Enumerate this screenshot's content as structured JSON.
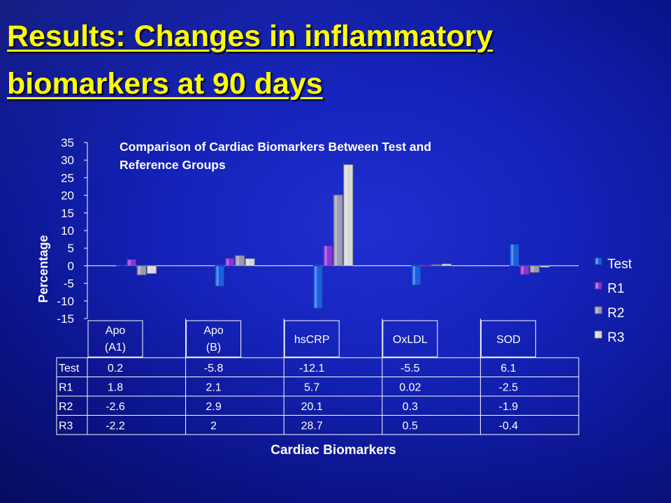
{
  "slide": {
    "title_line1": "Results: Changes in inflammatory",
    "title_line2": "biomarkers at 90 days"
  },
  "chart_data": {
    "type": "bar",
    "title": "Comparison of Cardiac Biomarkers Between Test and Reference Groups",
    "title_lines": [
      "Comparison of Cardiac Biomarkers Between Test and",
      "Reference Groups"
    ],
    "xlabel": "Cardiac Biomarkers",
    "ylabel": "Percentage",
    "ylim": [
      -15,
      35
    ],
    "yticks": [
      35,
      30,
      25,
      20,
      15,
      10,
      5,
      0,
      -5,
      -10,
      -15
    ],
    "categories": [
      [
        "Apo",
        "(A1)"
      ],
      [
        "Apo",
        "(B)"
      ],
      [
        "hsCRP"
      ],
      [
        "OxLDL"
      ],
      [
        "SOD"
      ]
    ],
    "series": [
      {
        "name": "Test",
        "values": [
          0.2,
          -5.8,
          -12.1,
          -5.5,
          6.1
        ],
        "labels": [
          "0.2",
          "-5.8",
          "-12.1",
          "-5.5",
          "6.1"
        ],
        "color": "#1a5fe0"
      },
      {
        "name": "R1",
        "values": [
          1.8,
          2.1,
          5.7,
          0.02,
          -2.5
        ],
        "labels": [
          "1.8",
          "2.1",
          "5.7",
          "0.02",
          "-2.5"
        ],
        "color": "#8a35d8"
      },
      {
        "name": "R2",
        "values": [
          -2.6,
          2.9,
          20.1,
          0.3,
          -1.9
        ],
        "labels": [
          "-2.6",
          "2.9",
          "20.1",
          "0.3",
          "-1.9"
        ],
        "color": "#9a9ab0"
      },
      {
        "name": "R3",
        "values": [
          -2.2,
          2,
          28.7,
          0.5,
          -0.4
        ],
        "labels": [
          "-2.2",
          "2",
          "28.7",
          "0.5",
          "-0.4"
        ],
        "color": "#d8d8d8"
      }
    ],
    "legend_position": "right",
    "data_table": true,
    "grid": false
  }
}
